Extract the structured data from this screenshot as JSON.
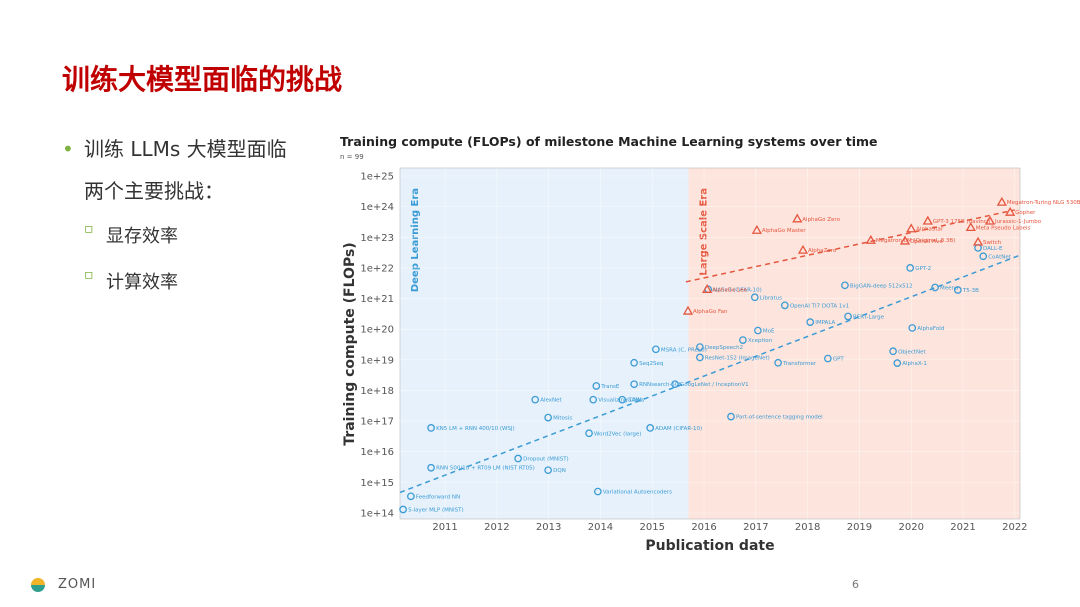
{
  "slide": {
    "title": "训练大模型面临的挑战",
    "bullet": "训练 LLMs 大模型面临两个主要挑战：",
    "sub_bullets": [
      "显存效率",
      "计算效率"
    ],
    "footer": "ZOMI",
    "page_number": "6"
  },
  "chart_data": {
    "type": "scatter",
    "title": "Training compute (FLOPs) of milestone Machine Learning systems over time",
    "subtitle": "n = 99",
    "x_label": "Publication date",
    "y_label": "Training compute (FLOPs)",
    "log_y": true,
    "grid": true,
    "xlim": [
      2010.13,
      2022.1
    ],
    "xticks": [
      2011,
      2012,
      2013,
      2014,
      2015,
      2016,
      2017,
      2018,
      2019,
      2020,
      2021,
      2022
    ],
    "ylim": [
      100000000000000.0,
      1e+25
    ],
    "yticks": [
      {
        "value": 100000000000000.0,
        "label": "1e+14"
      },
      {
        "value": 1000000000000000.0,
        "label": "1e+15"
      },
      {
        "value": 1e+16,
        "label": "1e+16"
      },
      {
        "value": 1e+17,
        "label": "1e+17"
      },
      {
        "value": 1e+18,
        "label": "1e+18"
      },
      {
        "value": 1e+19,
        "label": "1e+19"
      },
      {
        "value": 1e+20,
        "label": "1e+20"
      },
      {
        "value": 1e+21,
        "label": "1e+21"
      },
      {
        "value": 1e+22,
        "label": "1e+22"
      },
      {
        "value": 1e+23,
        "label": "1e+23"
      },
      {
        "value": 1e+24,
        "label": "1e+24"
      },
      {
        "value": 1e+25,
        "label": "1e+25"
      }
    ],
    "eras": [
      {
        "label": "Deep Learning Era",
        "start": 2010.13,
        "end": 2015.7,
        "color": "#e6f1fb",
        "text_color": "#3a9bd5"
      },
      {
        "label": "Large Scale Era",
        "start": 2015.7,
        "end": 2022.1,
        "color": "#fde4dc",
        "text_color": "#e5553e"
      }
    ],
    "trends": [
      {
        "color": "#3a9bd5",
        "x": [
          2010.13,
          2022.1
        ],
        "values": [
          470000000000000.0,
          2.6e+22
        ]
      },
      {
        "color": "#e5553e",
        "x": [
          2015.65,
          2022.0
        ],
        "values": [
          3.5e+21,
          7.8e+23
        ]
      }
    ],
    "series": [
      {
        "marker": "circle",
        "color": "#3a9bd5",
        "labels": [
          "5-layer MLP (MNIST)",
          "Feedforward NN",
          "KN5 LM + RNN 400/10 (WSJ)",
          "RNN 500/10 + RT09 LM (NIST RT05)",
          "Dropout (MNIST)",
          "DQN",
          "AlexNet",
          "Mitosis",
          "Word2Vec (large)",
          "Variational Autoencoders",
          "TransE",
          "Visualizing CNNs",
          "GANs",
          "Seq2Seq",
          "RNNsearch-50*",
          "MSRA (C, PReLU)",
          "GoogLeNet / InceptionV1",
          "ADAM (CIFAR-10)",
          "Part-of-sentence tagging model",
          "DeepSpeech2",
          "ResNet-152 (ImageNet)",
          "Xception",
          "Transformer",
          "MoE",
          "Libratus",
          "NASv3 (CIFAR-10)",
          "OpenAI TI7 DOTA 1v1",
          "IMPALA",
          "GPT",
          "BERT-Large",
          "BigGAN-deep 512x512",
          "AlphaFold",
          "ObjectNet",
          "AlphaX-1",
          "GPT-2",
          "T5-3B",
          "Meena",
          "DALL-E",
          "CoAtNet"
        ],
        "x": [
          2010.19,
          2010.34,
          2010.73,
          2010.73,
          2012.41,
          2012.99,
          2012.74,
          2012.99,
          2013.78,
          2013.95,
          2013.92,
          2013.86,
          2014.42,
          2014.65,
          2014.65,
          2015.07,
          2015.44,
          2014.96,
          2016.52,
          2015.92,
          2015.92,
          2016.75,
          2017.43,
          2017.04,
          2016.98,
          2016.08,
          2017.56,
          2018.05,
          2018.39,
          2018.78,
          2018.72,
          2020.02,
          2019.65,
          2019.73,
          2019.98,
          2020.9,
          2020.46,
          2021.29,
          2021.39
        ],
        "values": [
          130000000000000.0,
          350000000000000.0,
          6e+16,
          3000000000000000.0,
          6000000000000000.0,
          2500000000000000.0,
          5e+17,
          1.3e+17,
          4e+16,
          500000000000000.0,
          1.4e+18,
          5e+17,
          5e+17,
          8e+18,
          1.6e+18,
          2.2e+19,
          1.6e+18,
          6e+16,
          1.4e+17,
          2.6e+19,
          1.2e+19,
          4.4e+19,
          8e+18,
          9e+19,
          1.1e+21,
          2e+21,
          6e+20,
          1.7e+20,
          1.1e+19,
          2.6e+20,
          2.7e+21,
          1.1e+20,
          1.9e+19,
          7.8e+18,
          1e+22,
          1.9e+21,
          2.3e+21,
          4.5e+22,
          2.4e+22
        ]
      },
      {
        "marker": "triangle",
        "color": "#e5553e",
        "labels": [
          "AlphaGo Fan",
          "AlphaGo Lee",
          "AlphaGo Master",
          "AlphaGo Zero",
          "AlphaZero",
          "Megatron-LM (Original, 8.3B)",
          "OpenAI Five",
          "AlphaStar",
          "GPT-3 175B (davinci)",
          "Meta Pseudo Labels",
          "Switch",
          "Jurassic-1-Jumbo",
          "Gopher",
          "Megatron-Turing NLG 530B"
        ],
        "x": [
          2015.69,
          2016.06,
          2017.02,
          2017.8,
          2017.91,
          2019.22,
          2019.88,
          2020.0,
          2020.32,
          2021.15,
          2021.29,
          2021.52,
          2021.91,
          2021.75
        ],
        "values": [
          3.9e+20,
          2e+21,
          1.7e+23,
          4e+23,
          3.8e+22,
          8e+22,
          7.6e+22,
          1.9e+23,
          3.4e+23,
          2.1e+23,
          7e+22,
          3.4e+23,
          6.6e+23,
          1.4e+24
        ]
      }
    ]
  }
}
